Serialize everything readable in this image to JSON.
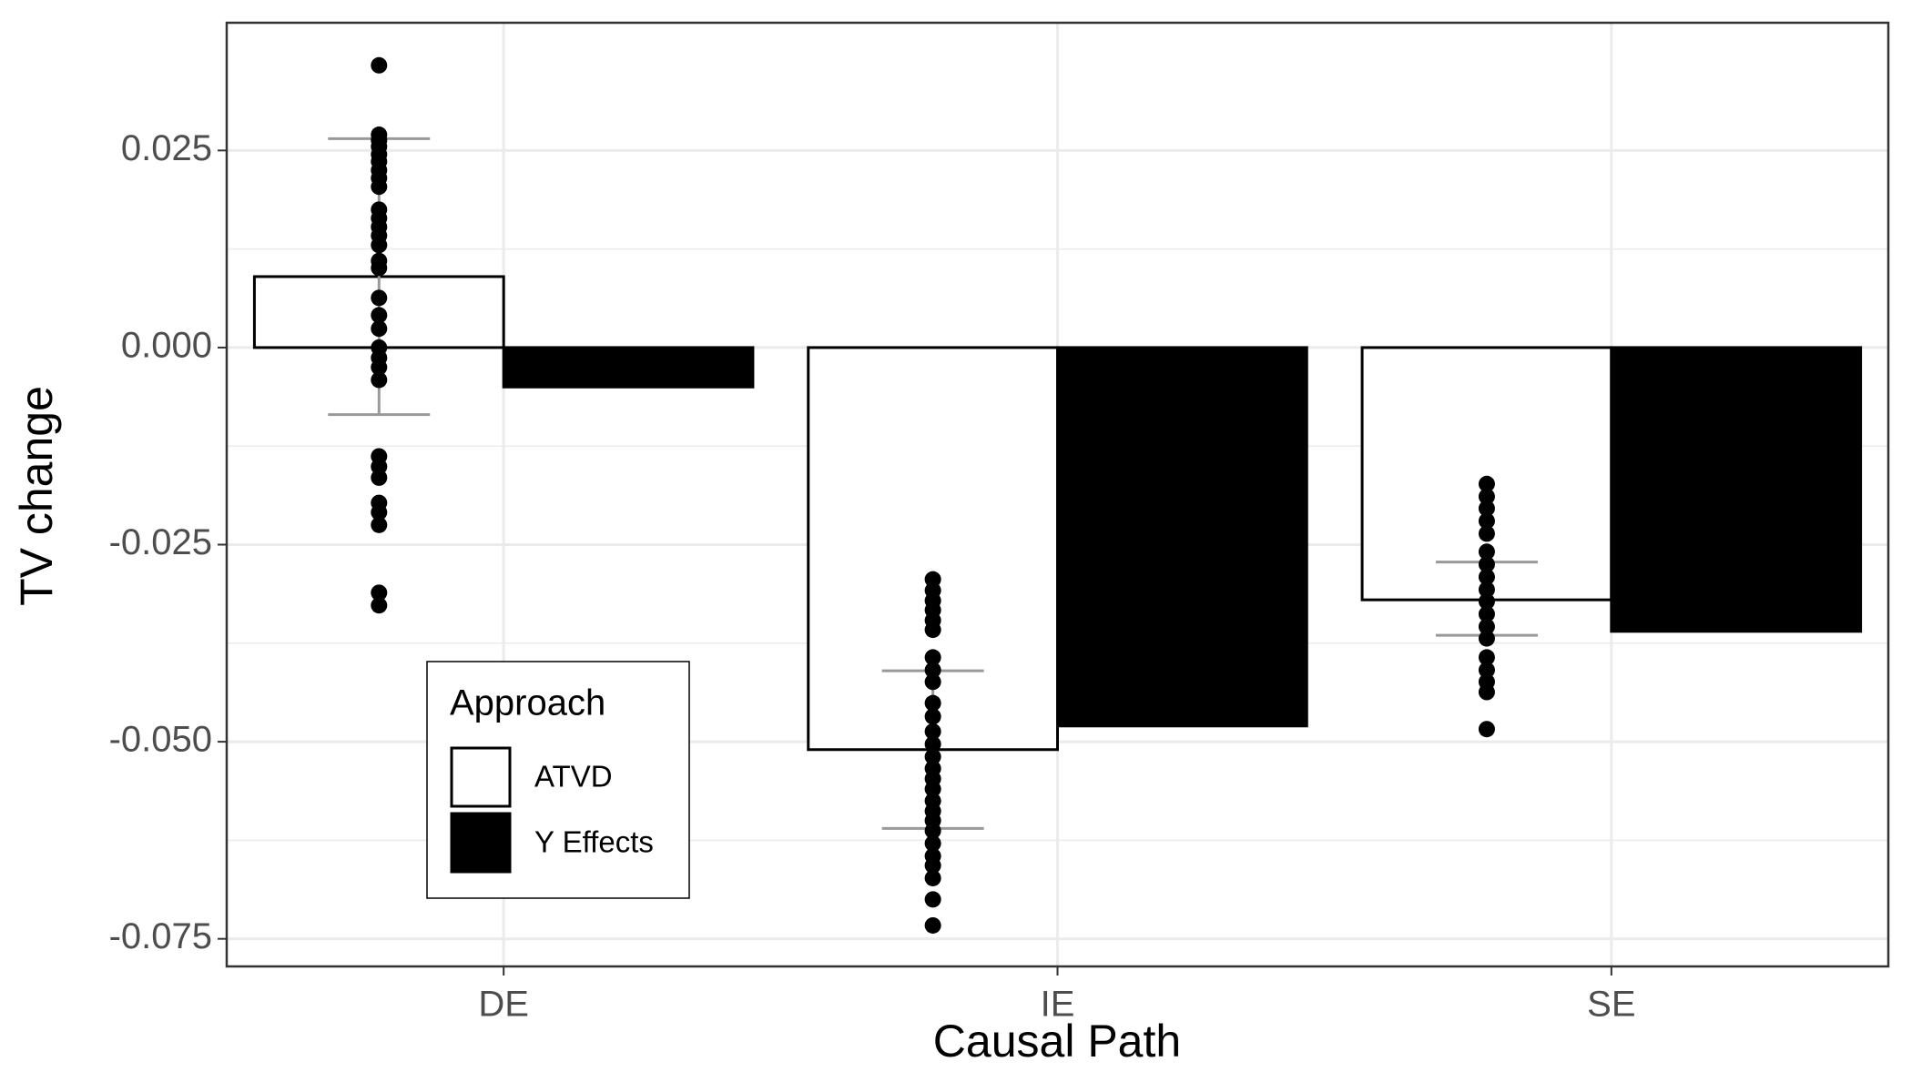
{
  "chart_data": {
    "type": "bar",
    "x_label": "Causal Path",
    "y_label": "TV change",
    "categories": [
      "DE",
      "IE",
      "SE"
    ],
    "ylim": [
      -0.0785,
      0.0412
    ],
    "yticks": [
      -0.075,
      {
        "value": -0.05,
        "label": "-0.050"
      },
      -0.025,
      {
        "value": 0,
        "label": "0.000"
      },
      0.025
    ],
    "grid": true,
    "legend": {
      "title": "Approach",
      "position": "bottom-left"
    },
    "series": [
      {
        "name": "ATVD",
        "color": "#ffffff",
        "values": [
          0.009,
          -0.051,
          -0.032
        ],
        "error": [
          [
            -0.0085,
            0.0265
          ],
          [
            -0.061,
            -0.041
          ],
          [
            -0.0365,
            -0.0272
          ]
        ],
        "points": [
          [
            0.0358,
            0.027,
            0.0263,
            0.0255,
            0.0245,
            0.0236,
            0.0225,
            0.0215,
            0.0204,
            0.0175,
            0.0164,
            0.0153,
            0.0142,
            0.013,
            0.011,
            0.0101,
            0.0063,
            0.0041,
            0.0024,
            0,
            -0.0013,
            -0.0025,
            -0.0041,
            -0.0138,
            -0.0151,
            -0.0165,
            -0.0197,
            -0.0209,
            -0.0225,
            -0.0311,
            -0.0327
          ],
          [
            -0.0294,
            -0.0308,
            -0.0321,
            -0.0333,
            -0.0346,
            -0.0358,
            -0.0393,
            -0.0409,
            -0.0424,
            -0.0451,
            -0.0468,
            -0.0487,
            -0.0503,
            -0.0519,
            -0.0534,
            -0.0547,
            -0.056,
            -0.0575,
            -0.0588,
            -0.06,
            -0.0613,
            -0.0629,
            -0.0645,
            -0.0657,
            -0.0673,
            -0.07,
            -0.0733
          ],
          [
            -0.0173,
            -0.0189,
            -0.0204,
            -0.022,
            -0.0236,
            -0.0259,
            -0.0275,
            -0.0291,
            -0.0307,
            -0.0322,
            -0.0338,
            -0.0354,
            -0.0369,
            -0.0393,
            -0.0409,
            -0.0424,
            -0.0437,
            -0.0484
          ]
        ]
      },
      {
        "name": "Y Effects",
        "color": "#000000",
        "values": [
          -0.005,
          -0.048,
          -0.036
        ]
      }
    ]
  }
}
